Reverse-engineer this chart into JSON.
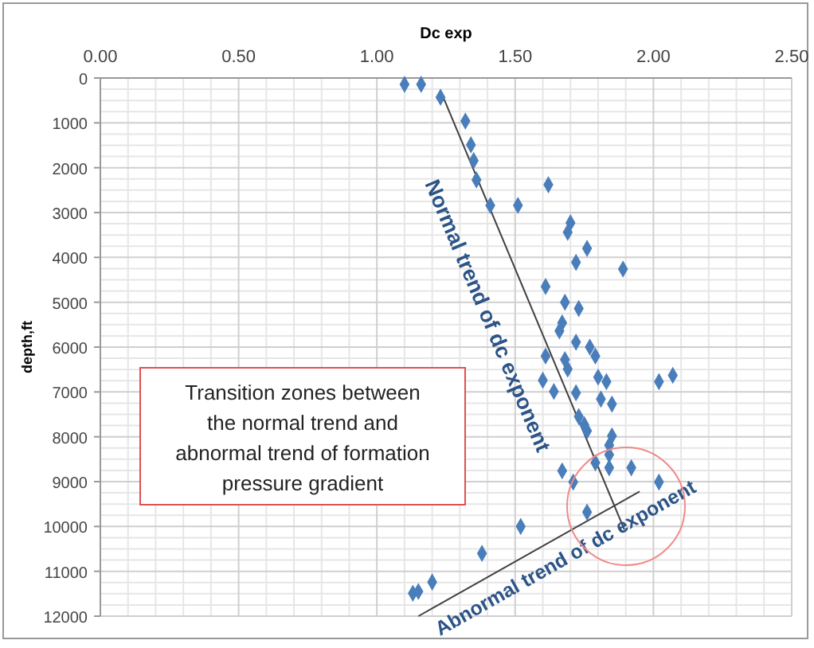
{
  "chart_data": {
    "type": "scatter",
    "xlabel": "Dc exp",
    "ylabel": "depth,ft",
    "xlim": [
      0,
      2.5
    ],
    "xticks": [
      {
        "value": 0,
        "label": "0.00"
      },
      {
        "value": 0.5,
        "label": "0.50"
      },
      {
        "value": 1,
        "label": "1.00"
      },
      {
        "value": 1.5,
        "label": "1.50"
      },
      {
        "value": 2,
        "label": "2.00"
      },
      {
        "value": 2.5,
        "label": "2.50"
      }
    ],
    "ylim": [
      12000,
      0
    ],
    "yticks": [
      0,
      1000,
      2000,
      3000,
      4000,
      5000,
      6000,
      7000,
      8000,
      9000,
      10000,
      11000,
      12000
    ],
    "grid": true,
    "annotations": [
      "Transition zones between the normal trend and abnormal trend of formation pressure gradient"
    ],
    "series": [
      {
        "marker": "diamond",
        "color": "#4a7ebb",
        "x": [
          1.1,
          1.16,
          1.23,
          1.32,
          1.34,
          1.35,
          1.36,
          1.41,
          1.51,
          1.62,
          1.7,
          1.69,
          1.76,
          1.72,
          1.89,
          1.61,
          1.68,
          1.73,
          1.67,
          1.66,
          1.72,
          1.77,
          1.79,
          1.61,
          1.68,
          1.69,
          1.8,
          1.83,
          1.6,
          1.64,
          1.72,
          1.81,
          1.85,
          2.02,
          2.07,
          1.73,
          1.75,
          1.76,
          1.85,
          1.84,
          1.84,
          1.79,
          1.67,
          1.84,
          1.71,
          1.92,
          2.02,
          1.76,
          1.52,
          1.38,
          1.2,
          1.15,
          1.13
        ],
        "values": [
          140,
          140,
          430,
          960,
          1490,
          1840,
          2270,
          2840,
          2840,
          2380,
          3230,
          3440,
          3800,
          4110,
          4260,
          4650,
          5000,
          5140,
          5460,
          5640,
          5890,
          6000,
          6200,
          6200,
          6280,
          6490,
          6670,
          6770,
          6740,
          6990,
          7020,
          7160,
          7270,
          6770,
          6630,
          7550,
          7730,
          7870,
          7980,
          8190,
          8400,
          8580,
          8760,
          8690,
          9010,
          8690,
          9010,
          9680,
          10000,
          10600,
          11240,
          11450,
          11490
        ]
      },
      {
        "type": "line",
        "name": "Normal trend of dc exponent",
        "color": "#404040",
        "marker": "none",
        "x": [
          1.23,
          1.895
        ],
        "values": [
          280,
          10070
        ]
      },
      {
        "type": "line",
        "name": "Abnormal trend of dc exponent",
        "color": "#404040",
        "marker": "none",
        "x": [
          1.15,
          1.95
        ],
        "values": [
          12000,
          9220
        ]
      }
    ]
  }
}
